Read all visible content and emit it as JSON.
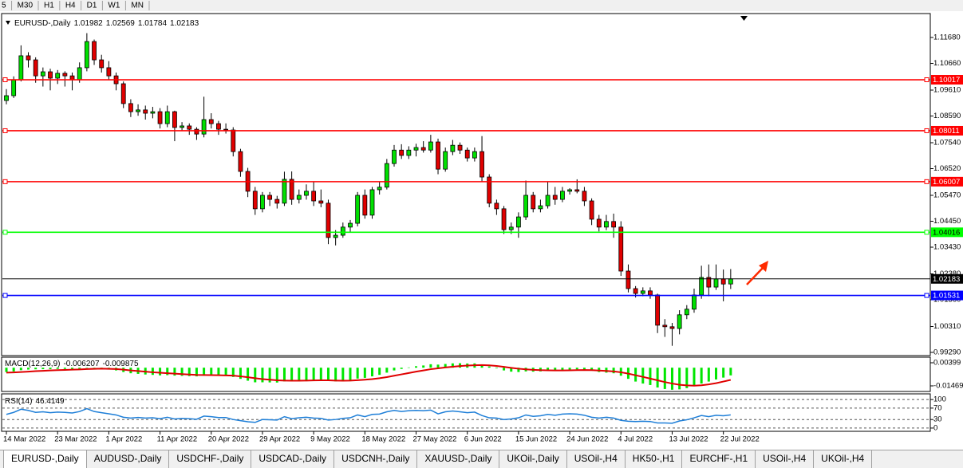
{
  "toolbar": [
    "5",
    "M30",
    "H1",
    "H4",
    "D1",
    "W1",
    "MN"
  ],
  "chart_data": [
    {
      "type": "candlestick",
      "symbol": "EURUSD-,Daily",
      "ohlc": [
        1.01982,
        1.02569,
        1.01784,
        1.02183
      ],
      "up_color": "#00e000",
      "down_color": "#e00000",
      "ylim": [
        0.99196,
        1.1259
      ],
      "yticks": [
        {
          "value": 1.1168,
          "label": "1.11680"
        },
        {
          "value": 1.1066,
          "label": "1.10660"
        },
        {
          "value": 1.0961,
          "label": "1.09610"
        },
        {
          "value": 1.0859,
          "label": "1.08590"
        },
        {
          "value": 1.0754,
          "label": "1.07540"
        },
        {
          "value": 1.0652,
          "label": "1.06520"
        },
        {
          "value": 1.0547,
          "label": "1.05470"
        },
        {
          "value": 1.0445,
          "label": "1.04450"
        },
        {
          "value": 1.0343,
          "label": "1.03430"
        },
        {
          "value": 1.0238,
          "label": "1.02380"
        },
        {
          "value": 1.0136,
          "label": "1.01360"
        },
        {
          "value": 1.0031,
          "label": "1.00310"
        },
        {
          "value": 0.9929,
          "label": "0.99290"
        }
      ],
      "levels": [
        {
          "value": 1.10017,
          "color": "#ff0000"
        },
        {
          "value": 1.08011,
          "color": "#ff0000"
        },
        {
          "value": 1.06007,
          "color": "#ff0000"
        },
        {
          "value": 1.04016,
          "color": "#00ff00"
        },
        {
          "value": 1.02183,
          "color": "#000000"
        },
        {
          "value": 1.01531,
          "color": "#0000ff"
        }
      ],
      "categories": [
        "14 Mar 2022",
        null,
        null,
        null,
        null,
        null,
        null,
        "23 Mar 2022",
        null,
        null,
        null,
        null,
        null,
        null,
        "1 Apr 2022",
        null,
        null,
        null,
        null,
        null,
        null,
        "11 Apr 2022",
        null,
        null,
        null,
        null,
        null,
        null,
        "20 Apr 2022",
        null,
        null,
        null,
        null,
        null,
        null,
        "29 Apr 2022",
        null,
        null,
        null,
        null,
        null,
        null,
        "9 May 2022",
        null,
        null,
        null,
        null,
        null,
        null,
        "18 May 2022",
        null,
        null,
        null,
        null,
        null,
        null,
        "27 May 2022",
        null,
        null,
        null,
        null,
        null,
        null,
        "6 Jun 2022",
        null,
        null,
        null,
        null,
        null,
        null,
        "15 Jun 2022",
        null,
        null,
        null,
        null,
        null,
        null,
        "24 Jun 2022",
        null,
        null,
        null,
        null,
        null,
        null,
        "4 Jul 2022",
        null,
        null,
        null,
        null,
        null,
        null,
        "13 Jul 2022",
        null,
        null,
        null,
        null,
        null,
        null,
        "22 Jul 2022",
        null
      ],
      "candles": [
        [
          1.092,
          1.0965,
          1.0905,
          1.0939
        ],
        [
          1.0939,
          1.1015,
          1.093,
          1.1002
        ],
        [
          1.1002,
          1.1137,
          1.0995,
          1.1096
        ],
        [
          1.1096,
          1.111,
          1.105,
          1.108
        ],
        [
          1.108,
          1.109,
          1.099,
          1.1017
        ],
        [
          1.1017,
          1.105,
          1.0975,
          1.1033
        ],
        [
          1.1033,
          1.1045,
          1.096,
          1.1008
        ],
        [
          1.1008,
          1.104,
          1.0985,
          1.1027
        ],
        [
          1.1027,
          1.1035,
          1.0975,
          1.1017
        ],
        [
          1.1017,
          1.103,
          1.096,
          1.1002
        ],
        [
          1.1002,
          1.107,
          1.099,
          1.1049
        ],
        [
          1.1049,
          1.1185,
          1.1035,
          1.1152
        ],
        [
          1.1152,
          1.116,
          1.106,
          1.108
        ],
        [
          1.108,
          1.11,
          1.103,
          1.1049
        ],
        [
          1.1049,
          1.1075,
          1.1,
          1.1017
        ],
        [
          1.1017,
          1.103,
          1.096,
          1.0986
        ],
        [
          1.0986,
          1.0995,
          1.089,
          1.0908
        ],
        [
          1.0908,
          1.0925,
          1.0855,
          1.0876
        ],
        [
          1.0876,
          1.0905,
          1.086,
          1.0883
        ],
        [
          1.0883,
          1.09,
          1.0845,
          1.087
        ],
        [
          1.087,
          1.0895,
          1.085,
          1.0876
        ],
        [
          1.0876,
          1.089,
          1.081,
          1.0829
        ],
        [
          1.0829,
          1.09,
          1.0815,
          1.0876
        ],
        [
          1.0876,
          1.088,
          1.076,
          1.0814
        ],
        [
          1.0814,
          1.0835,
          1.08,
          1.082
        ],
        [
          1.082,
          1.083,
          1.0785,
          1.0807
        ],
        [
          1.0807,
          1.0815,
          1.0765,
          1.0788
        ],
        [
          1.0788,
          1.0935,
          1.0775,
          1.0845
        ],
        [
          1.0845,
          1.087,
          1.081,
          1.0829
        ],
        [
          1.0829,
          1.084,
          1.0785,
          1.0807
        ],
        [
          1.0807,
          1.083,
          1.079,
          1.0804
        ],
        [
          1.0804,
          1.0815,
          1.07,
          1.0719
        ],
        [
          1.0719,
          1.073,
          1.062,
          1.0641
        ],
        [
          1.0641,
          1.0655,
          1.054,
          1.0563
        ],
        [
          1.0563,
          1.058,
          1.047,
          1.0494
        ],
        [
          1.0494,
          1.056,
          1.048,
          1.0547
        ],
        [
          1.0547,
          1.056,
          1.0505,
          1.0531
        ],
        [
          1.0531,
          1.0545,
          1.0495,
          1.0516
        ],
        [
          1.0516,
          1.064,
          1.0505,
          1.061
        ],
        [
          1.061,
          1.0641,
          1.051,
          1.0531
        ],
        [
          1.0531,
          1.057,
          1.0515,
          1.0547
        ],
        [
          1.0547,
          1.059,
          1.053,
          1.0563
        ],
        [
          1.0563,
          1.06,
          1.0505,
          1.0525
        ],
        [
          1.0525,
          1.057,
          1.05,
          1.0516
        ],
        [
          1.0516,
          1.053,
          1.0355,
          1.0381
        ],
        [
          1.0381,
          1.041,
          1.035,
          1.039
        ],
        [
          1.039,
          1.044,
          1.038,
          1.0422
        ],
        [
          1.0422,
          1.045,
          1.04,
          1.0437
        ],
        [
          1.0437,
          1.056,
          1.0425,
          1.0547
        ],
        [
          1.0547,
          1.057,
          1.0455,
          1.0469
        ],
        [
          1.0469,
          1.058,
          1.0455,
          1.0569
        ],
        [
          1.0569,
          1.06,
          1.055,
          1.0579
        ],
        [
          1.0579,
          1.069,
          1.057,
          1.0672
        ],
        [
          1.0672,
          1.0745,
          1.066,
          1.0725
        ],
        [
          1.0725,
          1.0748,
          1.069,
          1.0704
        ],
        [
          1.0704,
          1.074,
          1.069,
          1.0725
        ],
        [
          1.0725,
          1.075,
          1.07,
          1.0735
        ],
        [
          1.0735,
          1.076,
          1.0715,
          1.0725
        ],
        [
          1.0725,
          1.0785,
          1.0715,
          1.0757
        ],
        [
          1.0757,
          1.077,
          1.063,
          1.065
        ],
        [
          1.065,
          1.0735,
          1.064,
          1.0719
        ],
        [
          1.0719,
          1.0765,
          1.0705,
          1.0744
        ],
        [
          1.0744,
          1.0755,
          1.071,
          1.0725
        ],
        [
          1.0725,
          1.0735,
          1.068,
          1.0694
        ],
        [
          1.0694,
          1.0735,
          1.068,
          1.0719
        ],
        [
          1.0719,
          1.078,
          1.06,
          1.0619
        ],
        [
          1.0619,
          1.063,
          1.05,
          1.0516
        ],
        [
          1.0516,
          1.053,
          1.047,
          1.0494
        ],
        [
          1.0494,
          1.0505,
          1.0395,
          1.0412
        ],
        [
          1.0412,
          1.044,
          1.0395,
          1.0422
        ],
        [
          1.0422,
          1.048,
          1.038,
          1.0462
        ],
        [
          1.0462,
          1.0605,
          1.045,
          1.0547
        ],
        [
          1.0547,
          1.056,
          1.048,
          1.0494
        ],
        [
          1.0494,
          1.053,
          1.048,
          1.0506
        ],
        [
          1.0506,
          1.06,
          1.0495,
          1.0547
        ],
        [
          1.0547,
          1.058,
          1.051,
          1.0531
        ],
        [
          1.0531,
          1.058,
          1.052,
          1.0563
        ],
        [
          1.0563,
          1.0575,
          1.055,
          1.0569
        ],
        [
          1.0569,
          1.061,
          1.0555,
          1.0563
        ],
        [
          1.0563,
          1.058,
          1.0505,
          1.0525
        ],
        [
          1.0525,
          1.0535,
          1.043,
          1.0453
        ],
        [
          1.0453,
          1.047,
          1.0405,
          1.0422
        ],
        [
          1.0422,
          1.047,
          1.041,
          1.0444
        ],
        [
          1.0444,
          1.0475,
          1.038,
          1.0422
        ],
        [
          1.0422,
          1.0445,
          1.023,
          1.0249
        ],
        [
          1.0249,
          1.0275,
          1.0165,
          1.018
        ],
        [
          1.018,
          1.019,
          1.0145,
          1.0161
        ],
        [
          1.0161,
          1.0185,
          1.015,
          1.0171
        ],
        [
          1.0171,
          1.0185,
          1.014,
          1.0155
        ],
        [
          1.0155,
          1.016,
          1.0005,
          1.0036
        ],
        [
          1.0036,
          1.006,
          0.999,
          1.003
        ],
        [
          1.003,
          1.0045,
          0.9955,
          1.0023
        ],
        [
          1.0023,
          1.0095,
          1.0,
          1.0077
        ],
        [
          1.0077,
          1.0115,
          1.006,
          1.0099
        ],
        [
          1.0099,
          1.018,
          1.0085,
          1.0155
        ],
        [
          1.0155,
          1.027,
          1.014,
          1.0224
        ],
        [
          1.0224,
          1.0275,
          1.015,
          1.0186
        ],
        [
          1.0186,
          1.0275,
          1.0175,
          1.0218
        ],
        [
          1.0218,
          1.0255,
          1.013,
          1.0198
        ],
        [
          1.01982,
          1.02569,
          1.01784,
          1.02183
        ]
      ]
    },
    {
      "type": "macd",
      "label": "MACD(12,26,9)",
      "readout": [
        -0.006207,
        -0.009875
      ],
      "ylim": [
        -0.0192,
        0.0085
      ],
      "yticks": [
        0.00399,
        -0.01469
      ],
      "histogram": {
        "color": "#00e600",
        "values": [
          -0.0035,
          -0.003,
          -0.002,
          -0.0015,
          -0.0013,
          -0.0012,
          -0.0012,
          -0.001,
          -0.001,
          -0.001,
          -0.0008,
          0.0002,
          0.0,
          -0.0005,
          -0.0012,
          -0.0022,
          -0.0035,
          -0.0045,
          -0.005,
          -0.0055,
          -0.0058,
          -0.0062,
          -0.006,
          -0.0064,
          -0.0066,
          -0.0068,
          -0.007,
          -0.0064,
          -0.0063,
          -0.0064,
          -0.0065,
          -0.0075,
          -0.009,
          -0.0105,
          -0.0118,
          -0.0118,
          -0.0119,
          -0.012,
          -0.011,
          -0.0108,
          -0.0104,
          -0.01,
          -0.0098,
          -0.0096,
          -0.0105,
          -0.011,
          -0.0108,
          -0.0102,
          -0.0088,
          -0.0082,
          -0.007,
          -0.0058,
          -0.004,
          -0.0022,
          -0.001,
          0.0002,
          0.0012,
          0.0018,
          0.0028,
          0.0025,
          0.003,
          0.0035,
          0.0036,
          0.0034,
          0.0035,
          0.0025,
          0.001,
          -0.0005,
          -0.0022,
          -0.0032,
          -0.0035,
          -0.003,
          -0.0032,
          -0.003,
          -0.0025,
          -0.0024,
          -0.002,
          -0.0016,
          -0.0014,
          -0.0016,
          -0.0025,
          -0.0035,
          -0.004,
          -0.0045,
          -0.0065,
          -0.009,
          -0.0112,
          -0.0128,
          -0.014,
          -0.016,
          -0.0172,
          -0.0178,
          -0.0175,
          -0.0165,
          -0.015,
          -0.0128,
          -0.0112,
          -0.0095,
          -0.008,
          -0.006207
        ]
      },
      "signal": {
        "color": "#e00000",
        "values": [
          -0.004,
          -0.0038,
          -0.0035,
          -0.0032,
          -0.0028,
          -0.0025,
          -0.0022,
          -0.002,
          -0.0018,
          -0.0016,
          -0.0014,
          -0.0011,
          -0.0009,
          -0.0008,
          -0.0009,
          -0.0011,
          -0.0016,
          -0.0022,
          -0.0027,
          -0.0032,
          -0.0037,
          -0.0041,
          -0.0045,
          -0.0048,
          -0.0052,
          -0.0055,
          -0.0058,
          -0.0059,
          -0.006,
          -0.0061,
          -0.0062,
          -0.0064,
          -0.007,
          -0.0077,
          -0.0085,
          -0.0092,
          -0.0097,
          -0.0102,
          -0.0104,
          -0.0105,
          -0.0105,
          -0.0104,
          -0.0103,
          -0.0102,
          -0.0102,
          -0.0104,
          -0.0105,
          -0.0104,
          -0.0101,
          -0.0097,
          -0.0092,
          -0.0085,
          -0.0076,
          -0.0065,
          -0.0054,
          -0.0043,
          -0.0032,
          -0.0022,
          -0.0012,
          -0.0005,
          0.0002,
          0.0008,
          0.0013,
          0.0017,
          0.002,
          0.0021,
          0.0019,
          0.0014,
          0.0007,
          -0.0001,
          -0.0008,
          -0.0013,
          -0.0017,
          -0.002,
          -0.0021,
          -0.0022,
          -0.0022,
          -0.0021,
          -0.002,
          -0.0019,
          -0.002,
          -0.0023,
          -0.0026,
          -0.003,
          -0.0037,
          -0.0048,
          -0.0061,
          -0.0074,
          -0.0088,
          -0.0102,
          -0.0116,
          -0.0128,
          -0.0138,
          -0.0143,
          -0.0145,
          -0.0142,
          -0.0135,
          -0.0125,
          -0.0112,
          -0.009875
        ]
      }
    },
    {
      "type": "rsi",
      "label": "RSI(14)",
      "readout": 46.4149,
      "color": "#1e7fd8",
      "ylim": [
        -11.4,
        120
      ],
      "yticks": [
        100,
        70,
        30,
        0
      ],
      "values": [
        48,
        55,
        66,
        62,
        55,
        57,
        54,
        56,
        55,
        53,
        58,
        68,
        58,
        54,
        50,
        46,
        38,
        35,
        37,
        35,
        36,
        33,
        38,
        32,
        34,
        33,
        31,
        42,
        40,
        37,
        37,
        30,
        26,
        22,
        20,
        30,
        29,
        28,
        40,
        33,
        36,
        38,
        35,
        34,
        28,
        30,
        34,
        36,
        46,
        40,
        48,
        49,
        57,
        62,
        58,
        61,
        62,
        61,
        63,
        50,
        57,
        60,
        57,
        54,
        56,
        44,
        36,
        35,
        30,
        32,
        36,
        46,
        41,
        43,
        48,
        45,
        49,
        50,
        49,
        45,
        38,
        35,
        38,
        35,
        27,
        24,
        23,
        24,
        23,
        18,
        18,
        17,
        25,
        29,
        36,
        44,
        40,
        45,
        43,
        46.4149
      ]
    }
  ],
  "tabs": [
    "EURUSD-,Daily",
    "AUDUSD-,Daily",
    "USDCHF-,Daily",
    "USDCAD-,Daily",
    "USDCNH-,Daily",
    "XAUUSD-,Daily",
    "UKOil-,Daily",
    "USOil-,H4",
    "HK50-,H1",
    "EURCHF-,H1",
    "USOil-,H4",
    "UKOil-,H4"
  ],
  "active_tab": 0
}
